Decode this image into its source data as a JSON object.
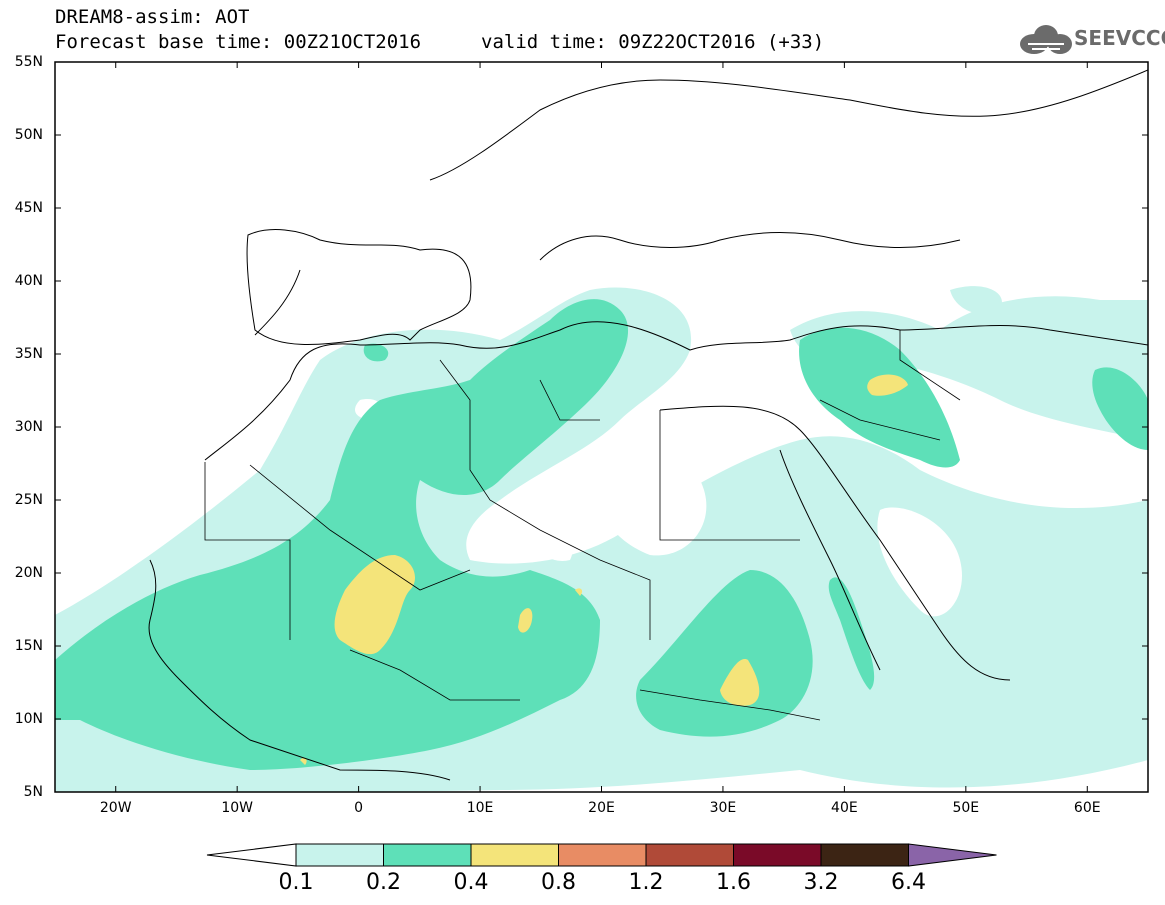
{
  "header": {
    "title_line1": "DREAM8-assim: AOT",
    "forecast_base": "Forecast base time: 00Z21OCT2016",
    "valid_time": "valid time: 09Z22OCT2016 (+33)",
    "logo_text": "SEEVCCC"
  },
  "map": {
    "lat_labels": [
      "55N",
      "50N",
      "45N",
      "40N",
      "35N",
      "30N",
      "25N",
      "20N",
      "15N",
      "10N",
      "5N"
    ],
    "lon_labels": [
      "20W",
      "10W",
      "0",
      "10E",
      "20E",
      "30E",
      "40E",
      "50E",
      "60E"
    ],
    "lat_range": [
      5,
      55
    ],
    "lon_range": [
      -25,
      65
    ],
    "field": "AOT"
  },
  "colorbar": {
    "labels": [
      "0.1",
      "0.2",
      "0.4",
      "0.8",
      "1.2",
      "1.6",
      "3.2",
      "6.4"
    ],
    "colors": [
      "#ffffff",
      "#c8f3ec",
      "#5ee0b8",
      "#f4e47a",
      "#e88c64",
      "#b04a38",
      "#7a0a28",
      "#3c2414",
      "#8a64a8"
    ]
  }
}
